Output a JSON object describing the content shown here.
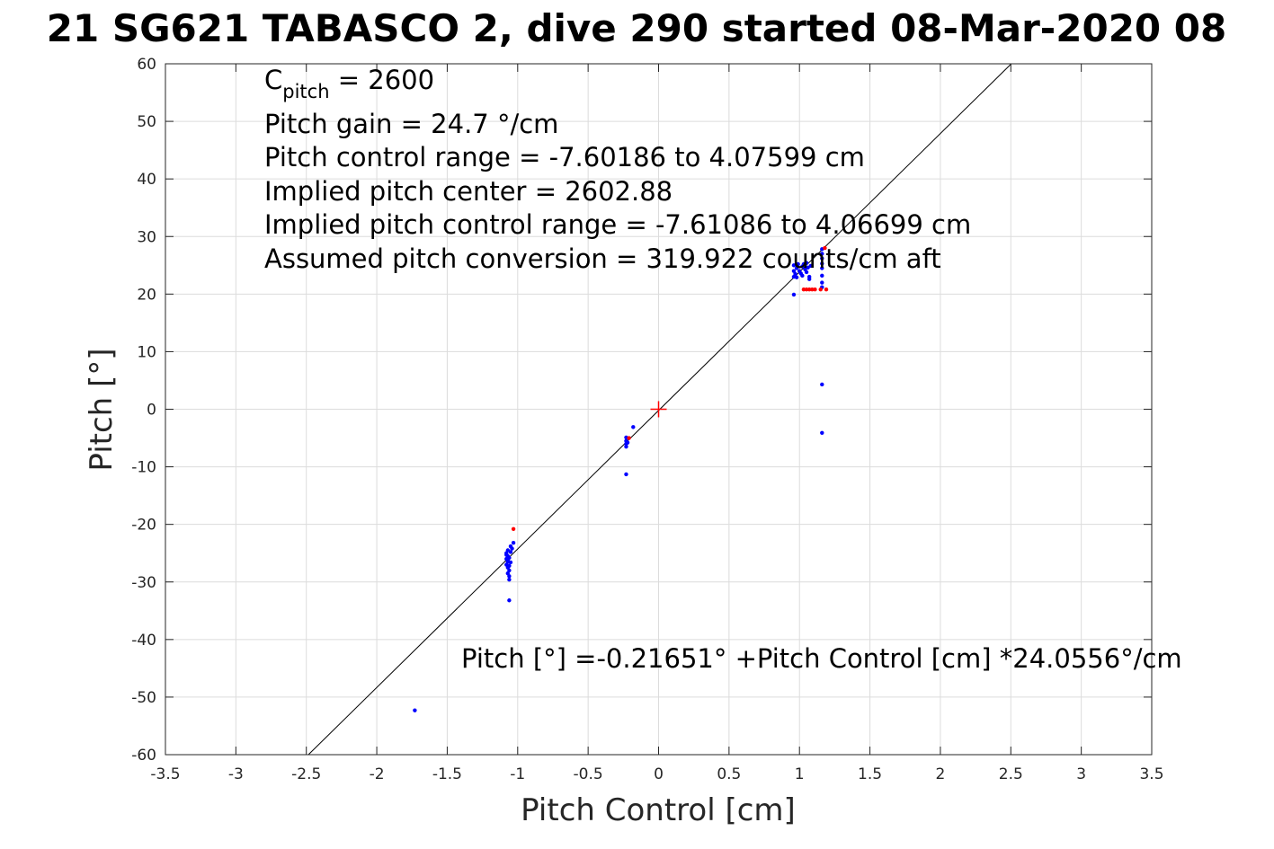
{
  "chart_data": {
    "type": "scatter",
    "title": "21 SG621 TABASCO 2, dive 290 started 08-Mar-2020 08",
    "xlabel": "Pitch Control [cm]",
    "ylabel": "Pitch [°]",
    "xlim": [
      -3.5,
      3.5
    ],
    "ylim": [
      -60,
      60
    ],
    "grid": true,
    "xticks": [
      -3.5,
      -3,
      -2.5,
      -2,
      -1.5,
      -1,
      -0.5,
      0,
      0.5,
      1,
      1.5,
      2,
      2.5,
      3,
      3.5
    ],
    "xtick_labels": [
      "-3.5",
      "-3",
      "-2.5",
      "-2",
      "-1.5",
      "-1",
      "-0.5",
      "0",
      "0.5",
      "1",
      "1.5",
      "2",
      "2.5",
      "3",
      "3.5"
    ],
    "yticks": [
      -60,
      -50,
      -40,
      -30,
      -20,
      -10,
      0,
      10,
      20,
      30,
      40,
      50,
      60
    ],
    "ytick_labels": [
      "-60",
      "-50",
      "-40",
      "-30",
      "-20",
      "-10",
      "0",
      "10",
      "20",
      "30",
      "40",
      "50",
      "60"
    ],
    "annotations": {
      "c_pitch_main": "C",
      "c_pitch_sub": "pitch",
      "c_pitch_value": " = 2600",
      "pitch_gain": "Pitch gain = 24.7 °/cm",
      "pitch_control_range": "Pitch control range = -7.60186 to 4.07599 cm",
      "implied_center": "Implied pitch center = 2602.88",
      "implied_range": "Implied pitch control range = -7.61086 to 4.06699 cm",
      "assumed_conversion": "Assumed pitch conversion = 319.922 counts/cm aft",
      "fit_equation": "Pitch [°] =-0.21651° +Pitch Control [cm] *24.0556°/cm"
    },
    "fit_line": {
      "intercept": -0.21651,
      "slope": 24.0556,
      "color": "#000000"
    },
    "center_marker": {
      "x": 0,
      "y": 0,
      "color": "#ff0000"
    },
    "series": [
      {
        "color": "#0000ff",
        "points": [
          [
            -1.73,
            -52.3
          ],
          [
            -1.06,
            -33.2
          ],
          [
            -1.07,
            -24.5
          ],
          [
            -1.08,
            -25.0
          ],
          [
            -1.07,
            -25.5
          ],
          [
            -1.08,
            -26.0
          ],
          [
            -1.07,
            -26.5
          ],
          [
            -1.08,
            -27.0
          ],
          [
            -1.07,
            -27.5
          ],
          [
            -1.06,
            -28.0
          ],
          [
            -1.07,
            -28.5
          ],
          [
            -1.06,
            -29.0
          ],
          [
            -1.06,
            -29.6
          ],
          [
            -1.08,
            -25.3
          ],
          [
            -1.07,
            -26.2
          ],
          [
            -1.06,
            -25.8
          ],
          [
            -1.05,
            -24.8
          ],
          [
            -1.04,
            -24.2
          ],
          [
            -1.05,
            -23.8
          ],
          [
            -1.03,
            -23.2
          ],
          [
            -1.06,
            -27.2
          ],
          [
            -1.05,
            -26.6
          ],
          [
            -0.23,
            -4.9
          ],
          [
            -0.23,
            -5.5
          ],
          [
            -0.23,
            -6.0
          ],
          [
            -0.23,
            -6.5
          ],
          [
            -0.22,
            -5.8
          ],
          [
            -0.23,
            -11.3
          ],
          [
            -0.18,
            -3.1
          ],
          [
            0.96,
            19.9
          ],
          [
            0.96,
            23.0
          ],
          [
            0.96,
            24.0
          ],
          [
            0.96,
            25.0
          ],
          [
            0.97,
            23.5
          ],
          [
            0.98,
            24.5
          ],
          [
            0.99,
            25.2
          ],
          [
            1.0,
            24.0
          ],
          [
            1.01,
            23.6
          ],
          [
            1.02,
            24.8
          ],
          [
            1.03,
            25.2
          ],
          [
            1.04,
            24.3
          ],
          [
            1.05,
            23.8
          ],
          [
            1.06,
            24.6
          ],
          [
            1.07,
            23.0
          ],
          [
            1.07,
            22.6
          ],
          [
            1.08,
            24.9
          ],
          [
            1.05,
            25.4
          ],
          [
            1.02,
            23.2
          ],
          [
            0.98,
            22.9
          ],
          [
            1.16,
            21.2
          ],
          [
            1.16,
            22.0
          ],
          [
            1.16,
            23.2
          ],
          [
            1.16,
            24.5
          ],
          [
            1.16,
            25.3
          ],
          [
            1.16,
            26.2
          ],
          [
            1.16,
            27.0
          ],
          [
            1.16,
            27.8
          ],
          [
            1.16,
            4.3
          ],
          [
            1.16,
            -4.1
          ]
        ]
      },
      {
        "color": "#ff0000",
        "points": [
          [
            -1.03,
            -20.8
          ],
          [
            -0.21,
            -5.0
          ],
          [
            1.03,
            20.8
          ],
          [
            1.05,
            20.8
          ],
          [
            1.07,
            20.8
          ],
          [
            1.09,
            20.8
          ],
          [
            1.11,
            20.8
          ],
          [
            1.15,
            20.8
          ],
          [
            1.19,
            20.8
          ],
          [
            1.18,
            28.0
          ]
        ]
      }
    ]
  }
}
